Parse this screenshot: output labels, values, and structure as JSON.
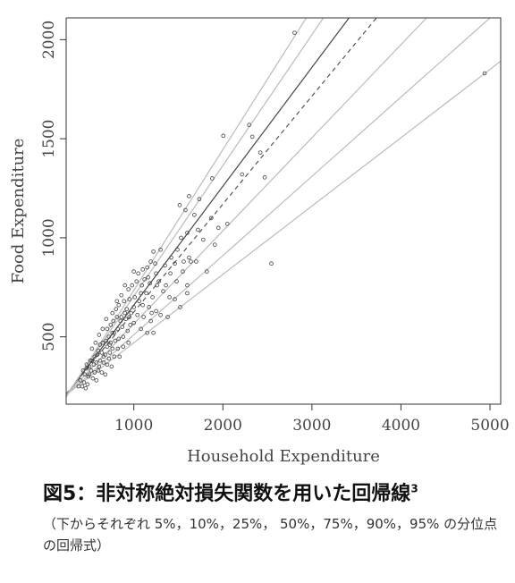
{
  "caption": {
    "title": "図5：非対称絶対損失関数を用いた回帰線",
    "footnote_mark": "3",
    "note": "（下からそれぞれ 5%，10%，25%， 50%，75%，90%，95% の分位点の回帰式）"
  },
  "chart_data": {
    "type": "scatter",
    "xlabel": "Household Expenditure",
    "ylabel": "Food Expenditure",
    "xlim": [
      240,
      5120
    ],
    "ylim": [
      160,
      2110
    ],
    "xticks": [
      1000,
      2000,
      3000,
      4000,
      5000
    ],
    "yticks": [
      500,
      1000,
      1500,
      2000
    ],
    "grid": false,
    "regression_lines": [
      {
        "quantile": 0.05,
        "intercept": 125,
        "slope": 0.345,
        "style": "solid",
        "color": "#bbbbbb"
      },
      {
        "quantile": 0.1,
        "intercept": 110,
        "slope": 0.4,
        "style": "solid",
        "color": "#bbbbbb"
      },
      {
        "quantile": 0.25,
        "intercept": 95,
        "slope": 0.47,
        "style": "solid",
        "color": "#bbbbbb"
      },
      {
        "quantile": 0.5,
        "intercept": 80,
        "slope": 0.545,
        "style": "dashed",
        "color": "#555555"
      },
      {
        "quantile": 0.75,
        "intercept": 60,
        "slope": 0.6,
        "style": "solid",
        "color": "#444444"
      },
      {
        "quantile": 0.9,
        "intercept": 45,
        "slope": 0.66,
        "style": "solid",
        "color": "#bbbbbb"
      },
      {
        "quantile": 0.95,
        "intercept": 25,
        "slope": 0.71,
        "style": "solid",
        "color": "#bbbbbb"
      }
    ],
    "points": [
      [
        2805,
        2035
      ],
      [
        4940,
        1830
      ],
      [
        2295,
        1570
      ],
      [
        2005,
        1515
      ],
      [
        2330,
        1510
      ],
      [
        2420,
        1430
      ],
      [
        2215,
        1320
      ],
      [
        2470,
        1305
      ],
      [
        2545,
        870
      ],
      [
        1880,
        1300
      ],
      [
        1735,
        1195
      ],
      [
        1620,
        1210
      ],
      [
        1515,
        1165
      ],
      [
        1580,
        1140
      ],
      [
        1680,
        1115
      ],
      [
        1870,
        1100
      ],
      [
        2050,
        1070
      ],
      [
        1950,
        1050
      ],
      [
        1720,
        1040
      ],
      [
        1600,
        1025
      ],
      [
        1530,
        1000
      ],
      [
        1780,
        990
      ],
      [
        1910,
        965
      ],
      [
        1490,
        940
      ],
      [
        1620,
        900
      ],
      [
        1700,
        880
      ],
      [
        1460,
        870
      ],
      [
        1550,
        830
      ],
      [
        1600,
        760
      ],
      [
        1820,
        830
      ],
      [
        1410,
        820
      ],
      [
        1350,
        860
      ],
      [
        1300,
        940
      ],
      [
        1220,
        930
      ],
      [
        1190,
        880
      ],
      [
        1250,
        820
      ],
      [
        1150,
        850
      ],
      [
        1100,
        840
      ],
      [
        1050,
        820
      ],
      [
        1000,
        830
      ],
      [
        1120,
        790
      ],
      [
        1180,
        770
      ],
      [
        1260,
        760
      ],
      [
        1330,
        730
      ],
      [
        1400,
        700
      ],
      [
        1460,
        690
      ],
      [
        1600,
        720
      ],
      [
        1520,
        650
      ],
      [
        1210,
        700
      ],
      [
        1140,
        720
      ],
      [
        1090,
        760
      ],
      [
        1030,
        780
      ],
      [
        980,
        760
      ],
      [
        940,
        740
      ],
      [
        900,
        760
      ],
      [
        860,
        710
      ],
      [
        1010,
        700
      ],
      [
        1060,
        680
      ],
      [
        1100,
        660
      ],
      [
        1170,
        650
      ],
      [
        1250,
        630
      ],
      [
        1300,
        610
      ],
      [
        1380,
        600
      ],
      [
        950,
        690
      ],
      [
        890,
        680
      ],
      [
        830,
        660
      ],
      [
        800,
        640
      ],
      [
        920,
        640
      ],
      [
        970,
        620
      ],
      [
        1040,
        610
      ],
      [
        1110,
        600
      ],
      [
        1190,
        580
      ],
      [
        1000,
        570
      ],
      [
        960,
        560
      ],
      [
        910,
        590
      ],
      [
        860,
        600
      ],
      [
        810,
        600
      ],
      [
        770,
        580
      ],
      [
        740,
        560
      ],
      [
        700,
        540
      ],
      [
        760,
        520
      ],
      [
        820,
        540
      ],
      [
        870,
        550
      ],
      [
        930,
        530
      ],
      [
        1080,
        540
      ],
      [
        1150,
        520
      ],
      [
        1220,
        520
      ],
      [
        880,
        500
      ],
      [
        830,
        490
      ],
      [
        790,
        480
      ],
      [
        740,
        470
      ],
      [
        690,
        480
      ],
      [
        650,
        470
      ],
      [
        620,
        460
      ],
      [
        700,
        450
      ],
      [
        760,
        440
      ],
      [
        820,
        440
      ],
      [
        880,
        450
      ],
      [
        940,
        470
      ],
      [
        600,
        430
      ],
      [
        640,
        420
      ],
      [
        680,
        410
      ],
      [
        730,
        420
      ],
      [
        780,
        400
      ],
      [
        840,
        400
      ],
      [
        560,
        400
      ],
      [
        530,
        380
      ],
      [
        580,
        370
      ],
      [
        620,
        380
      ],
      [
        660,
        370
      ],
      [
        700,
        360
      ],
      [
        750,
        350
      ],
      [
        500,
        350
      ],
      [
        470,
        340
      ],
      [
        520,
        330
      ],
      [
        560,
        320
      ],
      [
        600,
        330
      ],
      [
        640,
        320
      ],
      [
        680,
        310
      ],
      [
        450,
        310
      ],
      [
        490,
        300
      ],
      [
        540,
        290
      ],
      [
        580,
        280
      ],
      [
        440,
        270
      ],
      [
        480,
        260
      ],
      [
        420,
        250
      ],
      [
        460,
        240
      ],
      [
        500,
        310
      ],
      [
        550,
        360
      ],
      [
        610,
        350
      ],
      [
        660,
        400
      ],
      [
        720,
        390
      ],
      [
        590,
        410
      ],
      [
        510,
        380
      ],
      [
        470,
        360
      ],
      [
        430,
        330
      ],
      [
        400,
        280
      ],
      [
        380,
        250
      ],
      [
        900,
        620
      ],
      [
        950,
        600
      ],
      [
        1000,
        650
      ],
      [
        1080,
        720
      ],
      [
        850,
        580
      ],
      [
        780,
        520
      ],
      [
        720,
        500
      ],
      [
        1160,
        800
      ],
      [
        1240,
        870
      ],
      [
        1280,
        780
      ],
      [
        1360,
        760
      ],
      [
        1420,
        900
      ],
      [
        1480,
        780
      ],
      [
        1640,
        880
      ],
      [
        1560,
        880
      ],
      [
        1200,
        620
      ],
      [
        760,
        620
      ],
      [
        810,
        680
      ],
      [
        690,
        590
      ],
      [
        650,
        540
      ],
      [
        610,
        510
      ],
      [
        570,
        470
      ],
      [
        530,
        440
      ],
      [
        730,
        460
      ]
    ]
  }
}
